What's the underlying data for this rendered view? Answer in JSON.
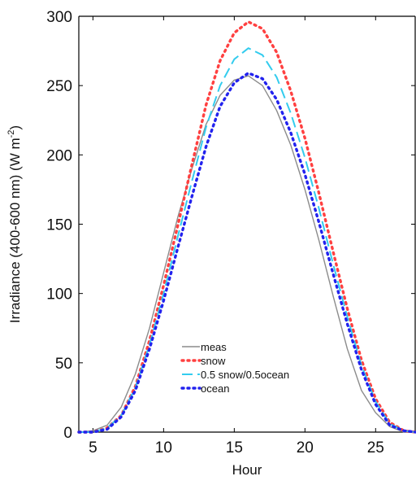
{
  "chart_data": {
    "type": "line",
    "title": "",
    "xlabel": "Hour",
    "ylabel": "Irradiance (400-600 nm) (W m",
    "ylabel_sup": "-2",
    "ylabel_end": ")",
    "xlim": [
      4,
      27.8
    ],
    "ylim": [
      0,
      300
    ],
    "xticks": [
      5,
      10,
      15,
      20,
      25
    ],
    "yticks": [
      0,
      50,
      100,
      150,
      200,
      250,
      300
    ],
    "grid": false,
    "legend_position": "lower-center",
    "x": [
      4,
      5,
      6,
      7,
      8,
      9,
      10,
      11,
      12,
      13,
      14,
      15,
      16,
      17,
      18,
      19,
      20,
      21,
      22,
      23,
      24,
      25,
      26,
      27,
      27.8
    ],
    "series": [
      {
        "name": "meas",
        "color": "#8c8c8c",
        "style": "solid",
        "values": [
          0,
          1,
          5,
          18,
          42,
          75,
          115,
          155,
          190,
          222,
          243,
          254,
          257,
          250,
          232,
          207,
          175,
          138,
          98,
          60,
          30,
          14,
          4,
          0,
          0
        ]
      },
      {
        "name": "snow",
        "color": "#ff4040",
        "style": "dotted",
        "values": [
          0,
          0,
          3,
          12,
          33,
          66,
          106,
          149,
          193,
          236,
          268,
          288,
          296,
          291,
          274,
          246,
          212,
          172,
          130,
          89,
          52,
          24,
          7,
          1,
          0
        ]
      },
      {
        "name": "0.5 snow/0.5ocean",
        "color": "#33ccee",
        "style": "dashed",
        "values": [
          0,
          0,
          3,
          12,
          32,
          63,
          100,
          141,
          181,
          220,
          250,
          269,
          277,
          272,
          256,
          230,
          198,
          161,
          121,
          83,
          48,
          22,
          6,
          1,
          0
        ]
      },
      {
        "name": "ocean",
        "color": "#2222ee",
        "style": "dotted",
        "values": [
          0,
          0,
          2,
          11,
          30,
          60,
          95,
          133,
          170,
          206,
          235,
          252,
          259,
          255,
          240,
          216,
          186,
          151,
          114,
          78,
          45,
          20,
          5,
          1,
          0
        ]
      }
    ]
  }
}
